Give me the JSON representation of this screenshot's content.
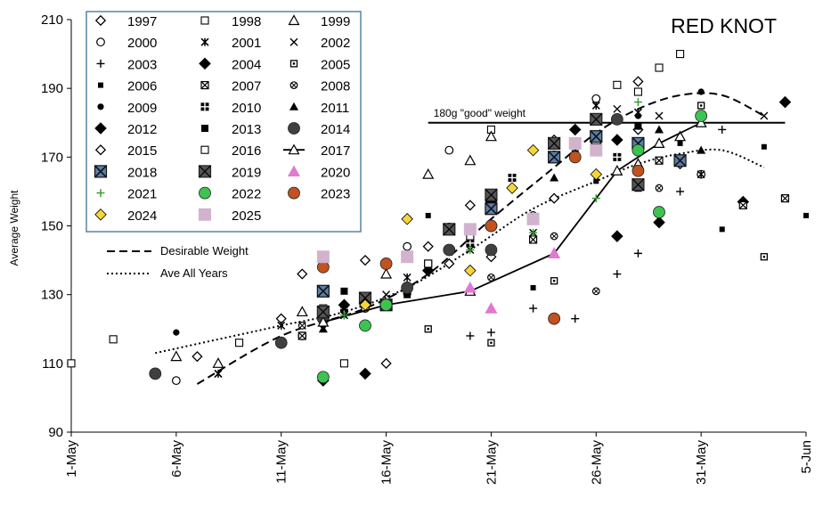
{
  "chart_data": {
    "type": "scatter",
    "title": "RED KNOT",
    "xlabel": "",
    "ylabel": "Average Weight",
    "ylim": [
      90,
      210
    ],
    "yticks": [
      90,
      110,
      130,
      150,
      170,
      190,
      210
    ],
    "xlim": [
      "2025-05-01",
      "2025-06-05"
    ],
    "xticks": [
      "1-May",
      "6-May",
      "11-May",
      "16-May",
      "21-May",
      "26-May",
      "31-May",
      "5-Jun"
    ],
    "grid": false,
    "legend_position": "top-left",
    "reference_line": {
      "label": "180g \"good\" weight",
      "y": 180,
      "x_from": "2025-05-18",
      "x_to": "2025-06-04"
    },
    "curve_legend": [
      {
        "name": "Desirable Weight",
        "style": "dashed"
      },
      {
        "name": "Ave All Years",
        "style": "dotted"
      }
    ],
    "curves": [
      {
        "name": "Desirable Weight",
        "style": "dashed",
        "points": [
          [
            "2025-05-07",
            104
          ],
          [
            "2025-05-11",
            118
          ],
          [
            "2025-05-15",
            126
          ],
          [
            "2025-05-18",
            136
          ],
          [
            "2025-05-21",
            152
          ],
          [
            "2025-05-24",
            167
          ],
          [
            "2025-05-26",
            177
          ],
          [
            "2025-05-28",
            184
          ],
          [
            "2025-05-30",
            188
          ],
          [
            "2025-06-01",
            188
          ],
          [
            "2025-06-03",
            182
          ]
        ]
      },
      {
        "name": "Ave All Years",
        "style": "dotted",
        "points": [
          [
            "2025-05-05",
            113
          ],
          [
            "2025-05-08",
            117
          ],
          [
            "2025-05-11",
            121
          ],
          [
            "2025-05-14",
            125
          ],
          [
            "2025-05-17",
            132
          ],
          [
            "2025-05-20",
            143
          ],
          [
            "2025-05-23",
            155
          ],
          [
            "2025-05-26",
            163
          ],
          [
            "2025-05-28",
            168
          ],
          [
            "2025-05-30",
            171
          ],
          [
            "2025-06-01",
            172
          ],
          [
            "2025-06-03",
            167
          ]
        ]
      }
    ],
    "series": [
      {
        "name": "1997",
        "marker": "diamond-open",
        "color": "#000000",
        "points": [
          [
            "2025-05-07",
            112
          ],
          [
            "2025-05-11",
            123
          ],
          [
            "2025-05-14",
            127
          ],
          [
            "2025-05-16",
            110
          ],
          [
            "2025-05-19",
            139
          ],
          [
            "2025-05-21",
            141
          ],
          [
            "2025-05-24",
            158
          ],
          [
            "2025-05-28",
            178
          ],
          [
            "2025-05-30",
            168
          ]
        ]
      },
      {
        "name": "1998",
        "marker": "square-open",
        "color": "#000000",
        "points": [
          [
            "2025-05-01",
            110
          ],
          [
            "2025-05-03",
            117
          ],
          [
            "2025-05-09",
            116
          ],
          [
            "2025-05-14",
            110
          ],
          [
            "2025-05-21",
            178
          ],
          [
            "2025-05-27",
            191
          ],
          [
            "2025-05-29",
            196
          ],
          [
            "2025-05-30",
            200
          ]
        ]
      },
      {
        "name": "1999",
        "marker": "triangle-open",
        "color": "#000000",
        "points": [
          [
            "2025-05-06",
            112
          ],
          [
            "2025-05-08",
            110
          ],
          [
            "2025-05-12",
            125
          ],
          [
            "2025-05-16",
            136
          ],
          [
            "2025-05-18",
            165
          ],
          [
            "2025-05-20",
            169
          ],
          [
            "2025-05-21",
            176
          ],
          [
            "2025-05-26",
            175
          ],
          [
            "2025-05-28",
            168
          ],
          [
            "2025-05-30",
            176
          ]
        ]
      },
      {
        "name": "2000",
        "marker": "circle-open",
        "color": "#000000",
        "points": [
          [
            "2025-05-06",
            105
          ],
          [
            "2025-05-12",
            118
          ],
          [
            "2025-05-15",
            126
          ],
          [
            "2025-05-17",
            144
          ],
          [
            "2025-05-19",
            172
          ],
          [
            "2025-05-23",
            153
          ],
          [
            "2025-05-26",
            187
          ],
          [
            "2025-05-31",
            165
          ]
        ]
      },
      {
        "name": "2001",
        "marker": "star",
        "color": "#000000",
        "points": [
          [
            "2025-05-08",
            107
          ],
          [
            "2025-05-11",
            121
          ],
          [
            "2025-05-14",
            124
          ],
          [
            "2025-05-17",
            135
          ],
          [
            "2025-05-21",
            150
          ],
          [
            "2025-05-26",
            185
          ],
          [
            "2025-05-28",
            183
          ],
          [
            "2025-05-31",
            165
          ]
        ]
      },
      {
        "name": "2002",
        "marker": "x",
        "color": "#000000",
        "points": [
          [
            "2025-05-08",
            107
          ],
          [
            "2025-05-12",
            121
          ],
          [
            "2025-05-16",
            130
          ],
          [
            "2025-05-20",
            143
          ],
          [
            "2025-05-23",
            148
          ],
          [
            "2025-05-27",
            184
          ],
          [
            "2025-05-29",
            182
          ],
          [
            "2025-06-03",
            182
          ]
        ]
      },
      {
        "name": "2003",
        "marker": "plus",
        "color": "#000000",
        "points": [
          [
            "2025-05-20",
            118
          ],
          [
            "2025-05-21",
            119
          ],
          [
            "2025-05-23",
            126
          ],
          [
            "2025-05-25",
            123
          ],
          [
            "2025-05-27",
            136
          ],
          [
            "2025-05-28",
            142
          ],
          [
            "2025-05-30",
            160
          ],
          [
            "2025-06-01",
            178
          ]
        ]
      },
      {
        "name": "2004",
        "marker": "diamond",
        "color": "#000000",
        "points": [
          [
            "2025-05-13",
            105
          ],
          [
            "2025-05-15",
            107
          ],
          [
            "2025-05-27",
            147
          ],
          [
            "2025-05-29",
            151
          ],
          [
            "2025-06-02",
            157
          ],
          [
            "2025-06-04",
            186
          ]
        ]
      },
      {
        "name": "2005",
        "marker": "square-dot",
        "color": "#000000",
        "points": [
          [
            "2025-05-18",
            120
          ],
          [
            "2025-05-21",
            116
          ],
          [
            "2025-05-24",
            134
          ],
          [
            "2025-05-28",
            161
          ],
          [
            "2025-05-31",
            185
          ],
          [
            "2025-06-03",
            141
          ]
        ]
      },
      {
        "name": "2006",
        "marker": "square-small",
        "color": "#000000",
        "points": [
          [
            "2025-05-18",
            153
          ],
          [
            "2025-05-23",
            132
          ],
          [
            "2025-05-26",
            163
          ],
          [
            "2025-05-30",
            174
          ],
          [
            "2025-06-01",
            149
          ],
          [
            "2025-06-03",
            173
          ],
          [
            "2025-06-05",
            153
          ]
        ]
      },
      {
        "name": "2007",
        "marker": "square-hatch",
        "color": "#000000",
        "points": [
          [
            "2025-05-12",
            118
          ],
          [
            "2025-05-18",
            139
          ],
          [
            "2025-05-23",
            146
          ],
          [
            "2025-05-29",
            169
          ],
          [
            "2025-06-02",
            156
          ],
          [
            "2025-06-04",
            158
          ]
        ]
      },
      {
        "name": "2008",
        "marker": "circle-hatch",
        "color": "#000000",
        "points": [
          [
            "2025-05-12",
            121
          ],
          [
            "2025-05-21",
            135
          ],
          [
            "2025-05-24",
            147
          ],
          [
            "2025-05-26",
            131
          ],
          [
            "2025-05-29",
            161
          ]
        ]
      },
      {
        "name": "2009",
        "marker": "circle",
        "color": "#000000",
        "points": [
          [
            "2025-05-06",
            119
          ],
          [
            "2025-05-13",
            121
          ],
          [
            "2025-05-19",
            150
          ],
          [
            "2025-05-24",
            171
          ],
          [
            "2025-05-28",
            182
          ],
          [
            "2025-05-31",
            189
          ]
        ]
      },
      {
        "name": "2010",
        "marker": "square-cross",
        "color": "#000000",
        "points": [
          [
            "2025-05-14",
            126
          ],
          [
            "2025-05-17",
            131
          ],
          [
            "2025-05-20",
            145
          ],
          [
            "2025-05-22",
            164
          ],
          [
            "2025-05-27",
            170
          ]
        ]
      },
      {
        "name": "2011",
        "marker": "triangle",
        "color": "#000000",
        "points": [
          [
            "2025-05-13",
            120
          ],
          [
            "2025-05-17",
            132
          ],
          [
            "2025-05-20",
            149
          ],
          [
            "2025-05-24",
            164
          ],
          [
            "2025-05-29",
            178
          ],
          [
            "2025-05-31",
            172
          ]
        ]
      },
      {
        "name": "2012",
        "marker": "diamond",
        "color": "#000000",
        "points": [
          [
            "2025-05-14",
            127
          ],
          [
            "2025-05-18",
            137
          ],
          [
            "2025-05-21",
            157
          ],
          [
            "2025-05-25",
            178
          ],
          [
            "2025-05-27",
            175
          ]
        ]
      },
      {
        "name": "2013",
        "marker": "square",
        "color": "#000000",
        "points": [
          [
            "2025-05-14",
            131
          ],
          [
            "2025-05-17",
            130
          ],
          [
            "2025-05-21",
            156
          ],
          [
            "2025-05-25",
            171
          ],
          [
            "2025-05-28",
            179
          ]
        ]
      },
      {
        "name": "2014",
        "marker": "circle",
        "color": "#404040",
        "points": [
          [
            "2025-05-05",
            107
          ],
          [
            "2025-05-11",
            116
          ],
          [
            "2025-05-13",
            123
          ],
          [
            "2025-05-15",
            128
          ],
          [
            "2025-05-17",
            132
          ],
          [
            "2025-05-19",
            143
          ],
          [
            "2025-05-21",
            143
          ],
          [
            "2025-05-24",
            174
          ],
          [
            "2025-05-27",
            181
          ]
        ]
      },
      {
        "name": "2015",
        "marker": "diamond-open",
        "color": "#000000",
        "points": [
          [
            "2025-05-12",
            136
          ],
          [
            "2025-05-15",
            140
          ],
          [
            "2025-05-18",
            144
          ],
          [
            "2025-05-20",
            156
          ],
          [
            "2025-05-24",
            175
          ],
          [
            "2025-05-28",
            192
          ]
        ]
      },
      {
        "name": "2016",
        "marker": "square-open",
        "color": "#000000",
        "points": [
          [
            "2025-05-13",
            126
          ],
          [
            "2025-05-18",
            139
          ],
          [
            "2025-05-20",
            147
          ],
          [
            "2025-05-28",
            189
          ]
        ]
      },
      {
        "name": "2017",
        "marker": "triangle-open",
        "color": "#000000",
        "line": true,
        "points": [
          [
            "2025-05-13",
            122
          ],
          [
            "2025-05-16",
            127
          ],
          [
            "2025-05-20",
            131
          ],
          [
            "2025-05-24",
            142
          ],
          [
            "2025-05-27",
            166
          ],
          [
            "2025-05-29",
            174
          ],
          [
            "2025-05-31",
            180
          ]
        ]
      },
      {
        "name": "2018",
        "marker": "square-x",
        "color": "#5b7fa8",
        "points": [
          [
            "2025-05-13",
            131
          ],
          [
            "2025-05-16",
            127
          ],
          [
            "2025-05-21",
            155
          ],
          [
            "2025-05-24",
            170
          ],
          [
            "2025-05-26",
            176
          ],
          [
            "2025-05-28",
            174
          ],
          [
            "2025-05-30",
            169
          ]
        ]
      },
      {
        "name": "2019",
        "marker": "square-hatch",
        "color": "#555555",
        "points": [
          [
            "2025-05-13",
            125
          ],
          [
            "2025-05-15",
            129
          ],
          [
            "2025-05-19",
            149
          ],
          [
            "2025-05-21",
            159
          ],
          [
            "2025-05-24",
            174
          ],
          [
            "2025-05-26",
            181
          ],
          [
            "2025-05-28",
            162
          ]
        ]
      },
      {
        "name": "2020",
        "marker": "triangle",
        "color": "#e07ad0",
        "points": [
          [
            "2025-05-20",
            132
          ],
          [
            "2025-05-21",
            126
          ],
          [
            "2025-05-24",
            142
          ]
        ]
      },
      {
        "name": "2021",
        "marker": "plus",
        "color": "#2f9a2f",
        "points": [
          [
            "2025-05-14",
            124
          ],
          [
            "2025-05-20",
            143
          ],
          [
            "2025-05-23",
            148
          ],
          [
            "2025-05-26",
            158
          ],
          [
            "2025-05-28",
            186
          ]
        ]
      },
      {
        "name": "2022",
        "marker": "circle",
        "color": "#3cc450",
        "points": [
          [
            "2025-05-13",
            106
          ],
          [
            "2025-05-15",
            121
          ],
          [
            "2025-05-16",
            127
          ],
          [
            "2025-05-21",
            150
          ],
          [
            "2025-05-28",
            172
          ],
          [
            "2025-05-29",
            154
          ],
          [
            "2025-05-31",
            182
          ]
        ]
      },
      {
        "name": "2023",
        "marker": "circle",
        "color": "#c0531f",
        "points": [
          [
            "2025-05-13",
            138
          ],
          [
            "2025-05-16",
            139
          ],
          [
            "2025-05-21",
            150
          ],
          [
            "2025-05-24",
            123
          ],
          [
            "2025-05-25",
            170
          ],
          [
            "2025-05-28",
            166
          ]
        ]
      },
      {
        "name": "2024",
        "marker": "diamond",
        "color": "#f4d63a",
        "points": [
          [
            "2025-05-15",
            127
          ],
          [
            "2025-05-17",
            152
          ],
          [
            "2025-05-20",
            137
          ],
          [
            "2025-05-22",
            161
          ],
          [
            "2025-05-23",
            172
          ],
          [
            "2025-05-26",
            165
          ]
        ]
      },
      {
        "name": "2025",
        "marker": "square",
        "color": "#d1b3ce",
        "points": [
          [
            "2025-05-13",
            141
          ],
          [
            "2025-05-17",
            141
          ],
          [
            "2025-05-20",
            149
          ],
          [
            "2025-05-23",
            152
          ],
          [
            "2025-05-25",
            174
          ],
          [
            "2025-05-26",
            172
          ]
        ]
      }
    ]
  }
}
